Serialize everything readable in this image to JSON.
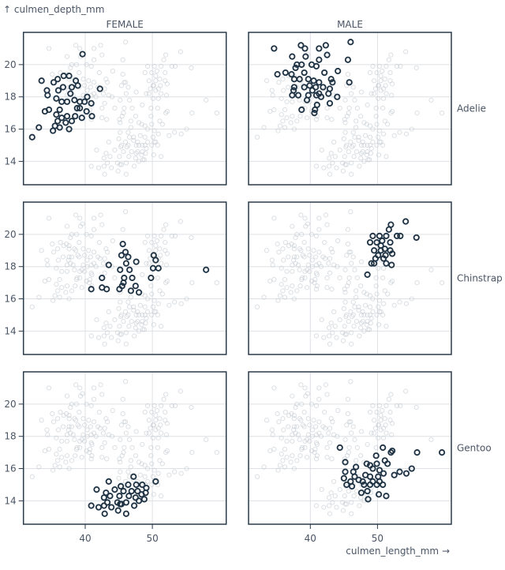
{
  "chart_data": {
    "type": "scatter",
    "xlabel": "culmen_length_mm →",
    "ylabel": "↑ culmen_depth_mm",
    "x_ticks": [
      40,
      50
    ],
    "y_ticks": [
      14,
      16,
      18,
      20
    ],
    "xlim": [
      30.8,
      61.0
    ],
    "ylim": [
      12.55,
      22.0
    ],
    "grid": true,
    "facet_columns": [
      "FEMALE",
      "MALE"
    ],
    "facet_rows": [
      "Adelie",
      "Chinstrap",
      "Gentoo"
    ],
    "colors": {
      "highlight": "#1f3344",
      "background": "#c3c9d1",
      "frame": "#2a3a4a",
      "grid": "#dde0e4"
    },
    "groups": [
      {
        "species": "Adelie",
        "sex": "FEMALE",
        "points": [
          [
            39.6,
            20.65
          ],
          [
            33.5,
            19.0
          ],
          [
            42.2,
            18.5
          ],
          [
            32.1,
            15.5
          ],
          [
            33.1,
            16.1
          ],
          [
            35.2,
            15.9
          ],
          [
            37.6,
            16.0
          ],
          [
            36.2,
            16.1
          ],
          [
            35.5,
            16.2
          ],
          [
            34.0,
            17.1
          ],
          [
            34.6,
            17.2
          ],
          [
            41.0,
            16.8
          ],
          [
            40.9,
            17.6
          ],
          [
            40.3,
            18.0
          ],
          [
            39.5,
            16.7
          ],
          [
            38.0,
            16.5
          ],
          [
            34.3,
            18.4
          ],
          [
            34.4,
            18.1
          ],
          [
            35.3,
            18.9
          ],
          [
            35.9,
            19.1
          ],
          [
            36.8,
            19.3
          ],
          [
            37.6,
            19.3
          ],
          [
            38.6,
            19.0
          ],
          [
            38.9,
            18.7
          ],
          [
            38.0,
            18.6
          ],
          [
            36.7,
            18.6
          ],
          [
            36.0,
            18.4
          ],
          [
            37.8,
            18.2
          ],
          [
            35.7,
            17.9
          ],
          [
            36.5,
            17.7
          ],
          [
            37.3,
            17.7
          ],
          [
            38.4,
            17.8
          ],
          [
            39.2,
            17.7
          ],
          [
            38.8,
            17.3
          ],
          [
            39.9,
            17.7
          ],
          [
            40.2,
            17.1
          ],
          [
            36.2,
            17.2
          ],
          [
            35.7,
            16.9
          ],
          [
            36.5,
            16.7
          ],
          [
            37.3,
            16.8
          ],
          [
            35.9,
            16.5
          ],
          [
            37.1,
            16.4
          ],
          [
            38.5,
            16.8
          ],
          [
            39.2,
            17.3
          ]
        ]
      },
      {
        "species": "Adelie",
        "sex": "MALE",
        "points": [
          [
            34.6,
            21.0
          ],
          [
            38.6,
            21.2
          ],
          [
            39.2,
            21.0
          ],
          [
            41.3,
            21.0
          ],
          [
            42.3,
            21.2
          ],
          [
            46.0,
            21.4
          ],
          [
            42.5,
            20.6
          ],
          [
            39.3,
            20.5
          ],
          [
            37.3,
            20.5
          ],
          [
            41.3,
            20.3
          ],
          [
            45.6,
            20.3
          ],
          [
            40.2,
            20.0
          ],
          [
            40.9,
            19.9
          ],
          [
            38.0,
            20.0
          ],
          [
            38.7,
            20.0
          ],
          [
            37.8,
            19.8
          ],
          [
            39.1,
            19.5
          ],
          [
            44.1,
            19.6
          ],
          [
            35.1,
            19.4
          ],
          [
            36.3,
            19.5
          ],
          [
            37.2,
            19.4
          ],
          [
            42.1,
            19.5
          ],
          [
            38.4,
            19.1
          ],
          [
            37.6,
            19.1
          ],
          [
            43.1,
            19.1
          ],
          [
            39.7,
            19.1
          ],
          [
            40.5,
            19.0
          ],
          [
            41.3,
            18.9
          ],
          [
            43.3,
            18.9
          ],
          [
            45.8,
            18.9
          ],
          [
            39.9,
            18.7
          ],
          [
            40.8,
            18.6
          ],
          [
            39.1,
            18.6
          ],
          [
            37.6,
            18.6
          ],
          [
            41.9,
            18.6
          ],
          [
            42.9,
            18.5
          ],
          [
            40.3,
            18.4
          ],
          [
            41.3,
            18.2
          ],
          [
            37.5,
            18.4
          ],
          [
            42.7,
            18.2
          ],
          [
            37.3,
            18.1
          ],
          [
            38.2,
            18.1
          ],
          [
            39.7,
            18.1
          ],
          [
            40.9,
            18.1
          ],
          [
            41.6,
            18.0
          ],
          [
            44.0,
            18.0
          ],
          [
            39.5,
            17.8
          ],
          [
            42.9,
            17.6
          ],
          [
            41.0,
            17.5
          ],
          [
            38.7,
            17.2
          ],
          [
            40.7,
            17.2
          ],
          [
            40.6,
            17.0
          ]
        ]
      },
      {
        "species": "Chinstrap",
        "sex": "FEMALE",
        "points": [
          [
            45.6,
            19.4
          ],
          [
            46.0,
            18.9
          ],
          [
            45.4,
            18.7
          ],
          [
            46.4,
            18.6
          ],
          [
            50.2,
            18.7
          ],
          [
            50.5,
            18.4
          ],
          [
            43.5,
            18.1
          ],
          [
            47.6,
            18.3
          ],
          [
            46.1,
            18.2
          ],
          [
            45.2,
            17.8
          ],
          [
            46.6,
            17.8
          ],
          [
            50.1,
            17.9
          ],
          [
            50.9,
            17.9
          ],
          [
            58.0,
            17.8
          ],
          [
            42.5,
            17.3
          ],
          [
            45.8,
            17.3
          ],
          [
            47.0,
            17.3
          ],
          [
            49.8,
            17.3
          ],
          [
            45.7,
            17.0
          ],
          [
            45.5,
            16.8
          ],
          [
            47.5,
            16.8
          ],
          [
            42.5,
            16.7
          ],
          [
            43.2,
            16.6
          ],
          [
            40.9,
            16.6
          ],
          [
            45.1,
            16.6
          ],
          [
            46.8,
            16.5
          ],
          [
            48.0,
            16.4
          ]
        ]
      },
      {
        "species": "Chinstrap",
        "sex": "MALE",
        "points": [
          [
            54.2,
            20.8
          ],
          [
            52.0,
            20.6
          ],
          [
            51.7,
            20.3
          ],
          [
            55.8,
            19.8
          ],
          [
            49.3,
            19.9
          ],
          [
            50.3,
            19.9
          ],
          [
            51.3,
            19.9
          ],
          [
            52.9,
            19.9
          ],
          [
            53.4,
            19.9
          ],
          [
            48.9,
            19.5
          ],
          [
            49.9,
            19.5
          ],
          [
            50.7,
            19.6
          ],
          [
            51.9,
            19.5
          ],
          [
            50.5,
            19.3
          ],
          [
            51.1,
            19.1
          ],
          [
            49.5,
            19.0
          ],
          [
            50.5,
            19.0
          ],
          [
            51.9,
            19.0
          ],
          [
            52.2,
            18.8
          ],
          [
            50.1,
            18.7
          ],
          [
            51.2,
            18.7
          ],
          [
            49.7,
            18.5
          ],
          [
            50.9,
            18.5
          ],
          [
            49.1,
            18.2
          ],
          [
            49.5,
            18.2
          ],
          [
            51.3,
            18.2
          ],
          [
            52.1,
            18.1
          ],
          [
            48.5,
            17.5
          ]
        ]
      },
      {
        "species": "Gentoo",
        "sex": "FEMALE",
        "points": [
          [
            47.2,
            15.5
          ],
          [
            50.5,
            15.2
          ],
          [
            43.5,
            15.2
          ],
          [
            41.7,
            14.7
          ],
          [
            45.3,
            14.9
          ],
          [
            46.4,
            15.0
          ],
          [
            47.6,
            15.0
          ],
          [
            48.5,
            15.0
          ],
          [
            49.1,
            14.8
          ],
          [
            44.4,
            14.7
          ],
          [
            43.1,
            14.5
          ],
          [
            45.7,
            14.6
          ],
          [
            46.9,
            14.6
          ],
          [
            47.8,
            14.6
          ],
          [
            49.0,
            14.5
          ],
          [
            43.7,
            14.3
          ],
          [
            45.1,
            14.3
          ],
          [
            46.5,
            14.3
          ],
          [
            47.5,
            14.2
          ],
          [
            48.4,
            14.4
          ],
          [
            42.8,
            14.2
          ],
          [
            48.8,
            14.1
          ],
          [
            43.3,
            13.9
          ],
          [
            44.8,
            13.9
          ],
          [
            46.1,
            13.9
          ],
          [
            45.2,
            13.8
          ],
          [
            40.9,
            13.7
          ],
          [
            42.0,
            13.6
          ],
          [
            42.8,
            13.7
          ],
          [
            43.9,
            13.6
          ],
          [
            47.3,
            13.7
          ],
          [
            42.9,
            13.2
          ],
          [
            44.9,
            13.4
          ],
          [
            46.1,
            13.2
          ],
          [
            45.4,
            13.8
          ],
          [
            48.0,
            14.0
          ]
        ]
      },
      {
        "species": "Gentoo",
        "sex": "MALE",
        "points": [
          [
            44.4,
            17.3
          ],
          [
            50.8,
            17.3
          ],
          [
            52.2,
            17.1
          ],
          [
            52.0,
            17.0
          ],
          [
            55.9,
            17.0
          ],
          [
            59.6,
            17.0
          ],
          [
            49.8,
            16.8
          ],
          [
            45.2,
            16.4
          ],
          [
            51.1,
            16.5
          ],
          [
            51.5,
            16.3
          ],
          [
            48.4,
            16.3
          ],
          [
            46.8,
            16.1
          ],
          [
            48.9,
            16.2
          ],
          [
            49.9,
            16.3
          ],
          [
            49.3,
            16.0
          ],
          [
            50.3,
            15.9
          ],
          [
            55.1,
            16.0
          ],
          [
            53.3,
            15.8
          ],
          [
            54.3,
            15.7
          ],
          [
            52.5,
            15.6
          ],
          [
            45.2,
            15.8
          ],
          [
            46.4,
            15.8
          ],
          [
            48.2,
            15.6
          ],
          [
            50.9,
            15.7
          ],
          [
            45.0,
            15.4
          ],
          [
            46.6,
            15.5
          ],
          [
            47.2,
            15.3
          ],
          [
            48.9,
            15.5
          ],
          [
            50.1,
            15.5
          ],
          [
            46.0,
            15.2
          ],
          [
            47.8,
            15.2
          ],
          [
            49.3,
            15.2
          ],
          [
            50.3,
            15.2
          ],
          [
            45.4,
            15.0
          ],
          [
            46.2,
            14.9
          ],
          [
            48.0,
            15.0
          ],
          [
            48.9,
            15.0
          ],
          [
            49.9,
            15.0
          ],
          [
            50.8,
            15.0
          ],
          [
            47.6,
            14.5
          ],
          [
            48.5,
            14.6
          ],
          [
            50.2,
            14.4
          ],
          [
            51.3,
            14.3
          ],
          [
            48.6,
            14.1
          ]
        ]
      }
    ]
  }
}
